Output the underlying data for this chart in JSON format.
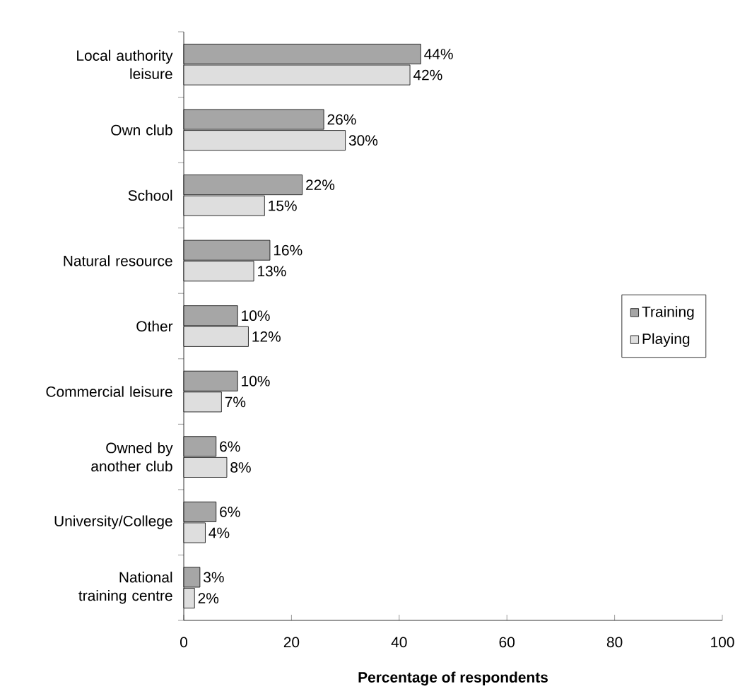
{
  "chart_data": {
    "type": "bar",
    "orientation": "horizontal",
    "xlabel": "Percentage of respondents",
    "categories": [
      "Local authority leisure",
      "Own club",
      "School",
      "Natural resource",
      "Other",
      "Commercial leisure",
      "Owned by another club",
      "University/College",
      "National training centre"
    ],
    "series": [
      {
        "name": "Training",
        "color": "#a6a6a6",
        "values": [
          44,
          26,
          22,
          16,
          10,
          10,
          6,
          6,
          3
        ],
        "value_labels": [
          "44%",
          "26%",
          "22%",
          "16%",
          "10%",
          "10%",
          "6%",
          "6%",
          "3%"
        ]
      },
      {
        "name": "Playing",
        "color": "#dedede",
        "values": [
          42,
          30,
          15,
          13,
          12,
          7,
          8,
          4,
          2
        ],
        "value_labels": [
          "42%",
          "30%",
          "15%",
          "13%",
          "12%",
          "7%",
          "8%",
          "4%",
          "2%"
        ]
      }
    ],
    "xlim": [
      0,
      100
    ],
    "xticks": [
      0,
      20,
      40,
      60,
      80,
      100
    ],
    "legend": "right"
  }
}
